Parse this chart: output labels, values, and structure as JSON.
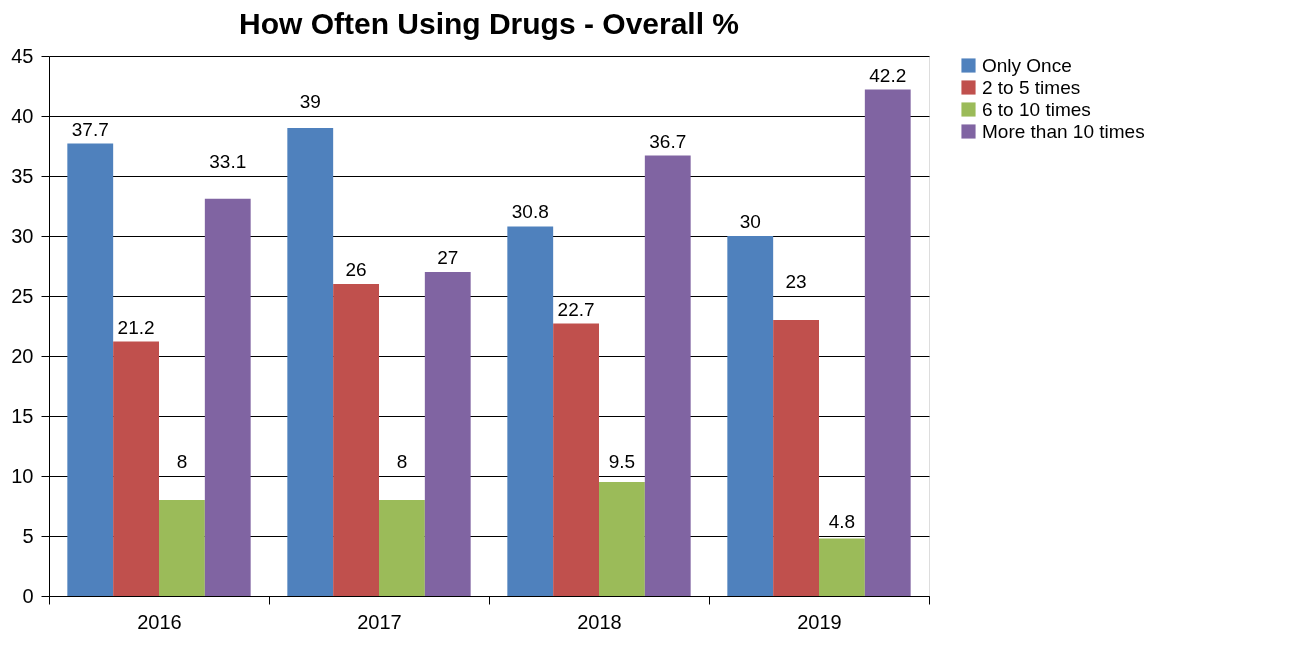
{
  "chart_data": {
    "type": "bar",
    "title": "How Often Using Drugs - Overall  %",
    "categories": [
      "2016",
      "2017",
      "2018",
      "2019"
    ],
    "series": [
      {
        "name": "Only Once",
        "color": "#4f81bd",
        "values": [
          37.7,
          39,
          30.8,
          30
        ]
      },
      {
        "name": "2 to 5 times",
        "color": "#c0504d",
        "values": [
          21.2,
          26,
          22.7,
          23
        ]
      },
      {
        "name": "6 to 10 times",
        "color": "#9bbb59",
        "values": [
          8,
          8,
          9.5,
          4.8
        ]
      },
      {
        "name": "More than 10 times",
        "color": "#8064a2",
        "values": [
          33.1,
          27,
          36.7,
          42.2
        ]
      }
    ],
    "ylim": [
      0,
      45
    ],
    "yticks": [
      0,
      5,
      10,
      15,
      20,
      25,
      30,
      35,
      40,
      45
    ],
    "grid": "y",
    "legend": "right",
    "data_labels": true
  }
}
